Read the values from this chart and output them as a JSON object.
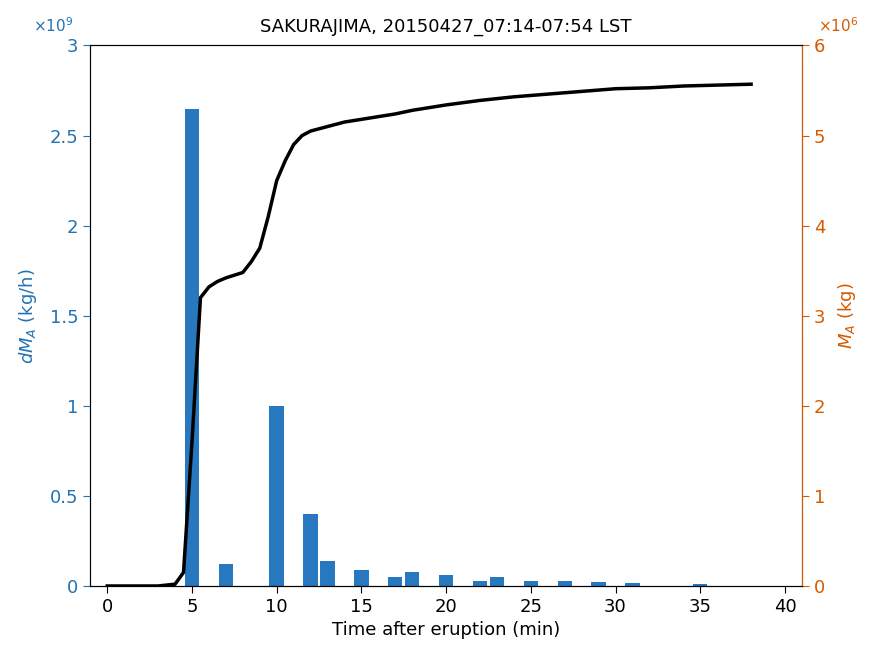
{
  "title": "SAKURAJIMA, 20150427_07:14-07:54 LST",
  "xlabel": "Time after eruption (min)",
  "bar_color": "#2878c0",
  "line_color": "#000000",
  "left_axis_color": "#2272b4",
  "right_axis_color": "#d45b00",
  "xlim": [
    -1,
    41
  ],
  "ylim_left": [
    0,
    3000000000.0
  ],
  "ylim_right": [
    0,
    6000000.0
  ],
  "bar_positions": [
    5,
    6,
    7,
    8,
    9,
    10,
    11,
    12,
    13,
    14,
    15,
    16,
    17,
    18,
    19,
    20,
    21,
    22,
    23,
    24,
    25,
    26,
    27,
    28,
    29,
    30,
    31,
    32,
    33,
    34,
    35,
    36,
    37,
    38
  ],
  "bar_heights": [
    2650000000.0,
    0.0,
    120000000.0,
    0.0,
    0.0,
    1000000000.0,
    0.0,
    400000000.0,
    140000000.0,
    0.0,
    90000000.0,
    0.0,
    50000000.0,
    80000000.0,
    0.0,
    60000000.0,
    0.0,
    30000000.0,
    50000000.0,
    0.0,
    30000000.0,
    0.0,
    30000000.0,
    0.0,
    20000000.0,
    0.0,
    15000000.0,
    0.0,
    0.0,
    0.0,
    10000000.0,
    0.0,
    0.0,
    0.0
  ],
  "line_x": [
    0,
    1,
    2,
    3,
    4,
    4.5,
    5.0,
    5.5,
    6.0,
    6.5,
    7.0,
    7.5,
    8.0,
    8.5,
    9.0,
    9.5,
    10.0,
    10.5,
    11.0,
    11.5,
    12.0,
    13.0,
    14.0,
    15.0,
    16.0,
    17.0,
    18.0,
    19.0,
    20.0,
    22.0,
    24.0,
    26.0,
    28.0,
    30.0,
    32.0,
    34.0,
    36.0,
    38.0
  ],
  "line_y": [
    0,
    0,
    0,
    0,
    20000.0,
    150000.0,
    1600000.0,
    3200000.0,
    3320000.0,
    3380000.0,
    3420000.0,
    3450000.0,
    3480000.0,
    3600000.0,
    3750000.0,
    4100000.0,
    4500000.0,
    4720000.0,
    4900000.0,
    5000000.0,
    5050000.0,
    5100000.0,
    5150000.0,
    5180000.0,
    5210000.0,
    5240000.0,
    5280000.0,
    5310000.0,
    5340000.0,
    5390000.0,
    5430000.0,
    5460000.0,
    5490000.0,
    5520000.0,
    5530000.0,
    5550000.0,
    5560000.0,
    5570000.0
  ],
  "xticks": [
    0,
    5,
    10,
    15,
    20,
    25,
    30,
    35,
    40
  ],
  "yticks_left": [
    0,
    500000000.0,
    1000000000.0,
    1500000000.0,
    2000000000.0,
    2500000000.0,
    3000000000.0
  ],
  "yticks_right": [
    0,
    1000000.0,
    2000000.0,
    3000000.0,
    4000000.0,
    5000000.0,
    6000000.0
  ],
  "bar_width": 0.85
}
